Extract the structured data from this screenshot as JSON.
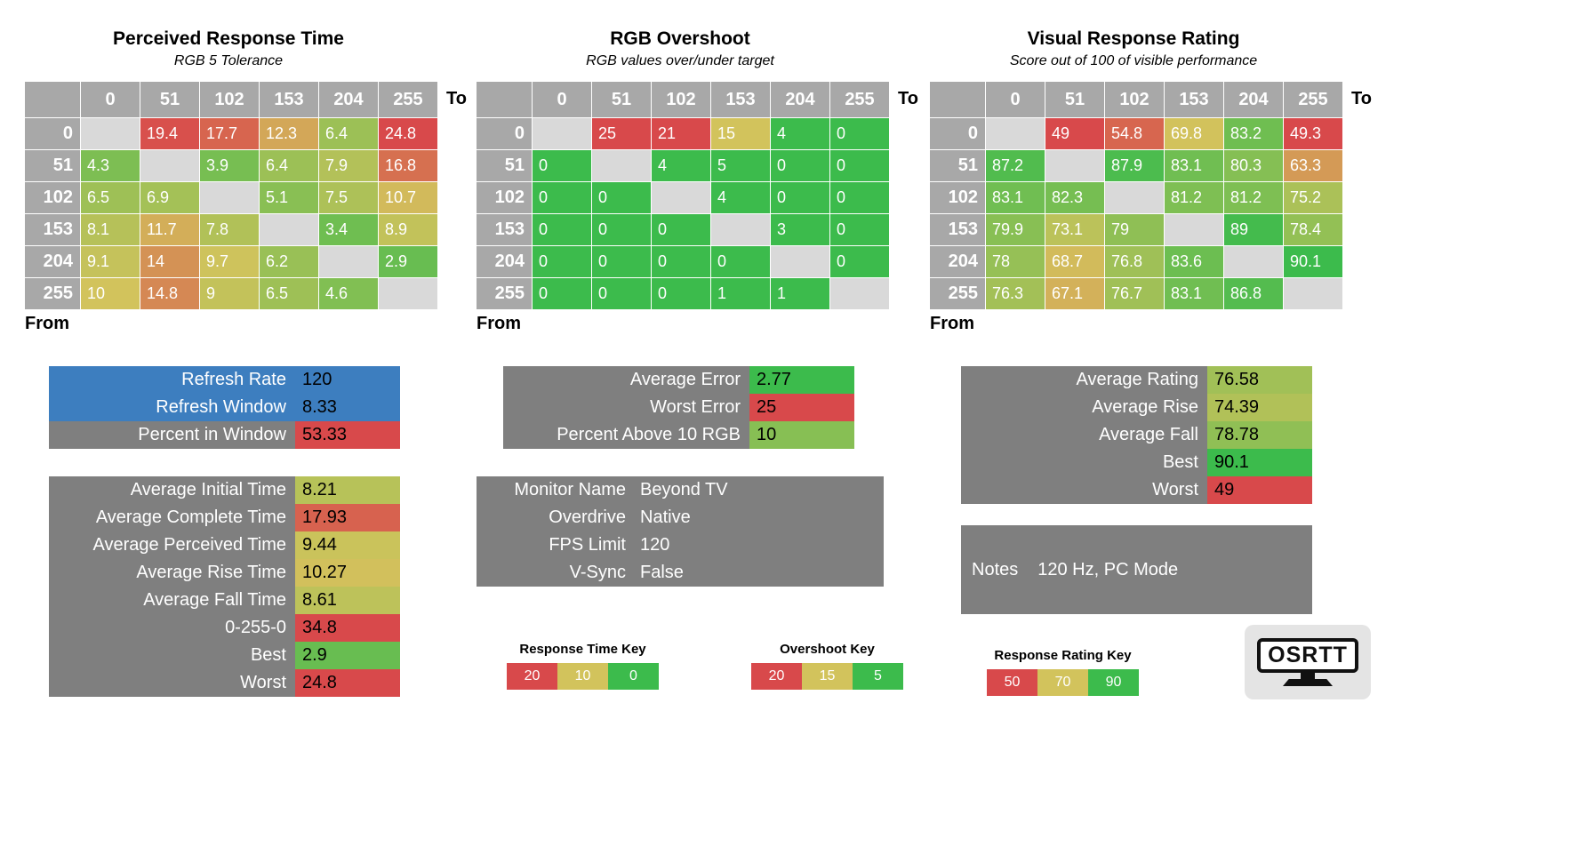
{
  "colors": {
    "green": "#3cbb4c",
    "yellow": "#d2c35c",
    "red": "#d8494b",
    "blue": "#3d7ebf",
    "panel_grey": "#7f7f7f",
    "header_grey": "#a8a8a8",
    "diagonal_grey": "#d9d9d9",
    "logo_bg": "#e4e4e4"
  },
  "scales": {
    "time": {
      "stops": [
        [
          0,
          "#3cbb4c"
        ],
        [
          10,
          "#d2c35c"
        ],
        [
          20,
          "#d8494b"
        ]
      ]
    },
    "overshoot": {
      "stops": [
        [
          5,
          "#3cbb4c"
        ],
        [
          15,
          "#d2c35c"
        ],
        [
          20,
          "#d8494b"
        ]
      ]
    },
    "rating": {
      "stops": [
        [
          50,
          "#d8494b"
        ],
        [
          70,
          "#d2c35c"
        ],
        [
          90,
          "#3cbb4c"
        ]
      ]
    },
    "percent": {
      "stops": [
        [
          60,
          "#d8494b"
        ],
        [
          80,
          "#d2c35c"
        ],
        [
          100,
          "#3cbb4c"
        ]
      ]
    }
  },
  "chart_data": [
    {
      "type": "heatmap",
      "title": "Perceived Response Time",
      "subtitle": "RGB 5 Tolerance",
      "x_label": "To",
      "y_label": "From",
      "x_categories": [
        "0",
        "51",
        "102",
        "153",
        "204",
        "255"
      ],
      "y_categories": [
        "0",
        "51",
        "102",
        "153",
        "204",
        "255"
      ],
      "scale": "time",
      "values": [
        [
          null,
          "19.4",
          "17.7",
          "12.3",
          "6.4",
          "24.8"
        ],
        [
          "4.3",
          null,
          "3.9",
          "6.4",
          "7.9",
          "16.8"
        ],
        [
          "6.5",
          "6.9",
          null,
          "5.1",
          "7.5",
          "10.7"
        ],
        [
          "8.1",
          "11.7",
          "7.8",
          null,
          "3.4",
          "8.9"
        ],
        [
          "9.1",
          "14",
          "9.7",
          "6.2",
          null,
          "2.9"
        ],
        [
          "10",
          "14.8",
          "9",
          "6.5",
          "4.6",
          null
        ]
      ]
    },
    {
      "type": "heatmap",
      "title": "RGB Overshoot",
      "subtitle": "RGB values over/under target",
      "x_label": "To",
      "y_label": "From",
      "x_categories": [
        "0",
        "51",
        "102",
        "153",
        "204",
        "255"
      ],
      "y_categories": [
        "0",
        "51",
        "102",
        "153",
        "204",
        "255"
      ],
      "scale": "overshoot",
      "values": [
        [
          null,
          "25",
          "21",
          "15",
          "4",
          "0"
        ],
        [
          "0",
          null,
          "4",
          "5",
          "0",
          "0"
        ],
        [
          "0",
          "0",
          null,
          "4",
          "0",
          "0"
        ],
        [
          "0",
          "0",
          "0",
          null,
          "3",
          "0"
        ],
        [
          "0",
          "0",
          "0",
          "0",
          null,
          "0"
        ],
        [
          "0",
          "0",
          "0",
          "1",
          "1",
          null
        ]
      ]
    },
    {
      "type": "heatmap",
      "title": "Visual Response Rating",
      "subtitle": "Score out of 100 of visible performance",
      "x_label": "To",
      "y_label": "From",
      "x_categories": [
        "0",
        "51",
        "102",
        "153",
        "204",
        "255"
      ],
      "y_categories": [
        "0",
        "51",
        "102",
        "153",
        "204",
        "255"
      ],
      "scale": "rating",
      "values": [
        [
          null,
          "49",
          "54.8",
          "69.8",
          "83.2",
          "49.3"
        ],
        [
          "87.2",
          null,
          "87.9",
          "83.1",
          "80.3",
          "63.3"
        ],
        [
          "83.1",
          "82.3",
          null,
          "81.2",
          "81.2",
          "75.2"
        ],
        [
          "79.9",
          "73.1",
          "79",
          null,
          "89",
          "78.4"
        ],
        [
          "78",
          "68.7",
          "76.8",
          "83.6",
          null,
          "90.1"
        ],
        [
          "76.3",
          "67.1",
          "76.7",
          "83.1",
          "86.8",
          null
        ]
      ]
    }
  ],
  "panels": {
    "refresh": {
      "rows": [
        {
          "label": "Refresh Rate",
          "value": "120",
          "bg": "blue"
        },
        {
          "label": "Refresh Window",
          "value": "8.33",
          "bg": "blue"
        },
        {
          "label": "Percent in Window",
          "value": "53.33",
          "scale": "percent"
        }
      ]
    },
    "times": {
      "rows": [
        {
          "label": "Average Initial Time",
          "value": "8.21",
          "scale": "time"
        },
        {
          "label": "Average Complete Time",
          "value": "17.93",
          "scale": "time"
        },
        {
          "label": "Average Perceived Time",
          "value": "9.44",
          "scale": "time"
        },
        {
          "label": "Average Rise Time",
          "value": "10.27",
          "scale": "time"
        },
        {
          "label": "Average Fall Time",
          "value": "8.61",
          "scale": "time"
        },
        {
          "label": "0-255-0",
          "value": "34.8",
          "scale": "time"
        },
        {
          "label": "Best",
          "value": "2.9",
          "scale": "time"
        },
        {
          "label": "Worst",
          "value": "24.8",
          "scale": "time"
        }
      ]
    },
    "overshoot": {
      "rows": [
        {
          "label": "Average Error",
          "value": "2.77",
          "scale": "overshoot"
        },
        {
          "label": "Worst Error",
          "value": "25",
          "scale": "overshoot"
        },
        {
          "label": "Percent Above 10 RGB",
          "value": "10",
          "scale": "overshoot"
        }
      ]
    },
    "monitor": {
      "rows": [
        {
          "label": "Monitor Name",
          "value": "Beyond TV"
        },
        {
          "label": "Overdrive",
          "value": "Native"
        },
        {
          "label": "FPS Limit",
          "value": "120"
        },
        {
          "label": "V-Sync",
          "value": "False"
        }
      ]
    },
    "rating": {
      "rows": [
        {
          "label": "Average Rating",
          "value": "76.58",
          "scale": "rating"
        },
        {
          "label": "Average Rise",
          "value": "74.39",
          "scale": "rating"
        },
        {
          "label": "Average Fall",
          "value": "78.78",
          "scale": "rating"
        },
        {
          "label": "Best",
          "value": "90.1",
          "scale": "rating"
        },
        {
          "label": "Worst",
          "value": "49",
          "scale": "rating"
        }
      ]
    },
    "notes": {
      "label": "Notes",
      "value": "120 Hz, PC Mode"
    }
  },
  "keys": [
    {
      "title": "Response Time Key",
      "cells": [
        {
          "value": "20",
          "color": "#d8494b"
        },
        {
          "value": "10",
          "color": "#d2c35c"
        },
        {
          "value": "0",
          "color": "#3cbb4c"
        }
      ]
    },
    {
      "title": "Overshoot Key",
      "cells": [
        {
          "value": "20",
          "color": "#d8494b"
        },
        {
          "value": "15",
          "color": "#d2c35c"
        },
        {
          "value": "5",
          "color": "#3cbb4c"
        }
      ]
    },
    {
      "title": "Response Rating Key",
      "cells": [
        {
          "value": "50",
          "color": "#d8494b"
        },
        {
          "value": "70",
          "color": "#d2c35c"
        },
        {
          "value": "90",
          "color": "#3cbb4c"
        }
      ]
    }
  ],
  "logo": {
    "text": "OSRTT"
  }
}
